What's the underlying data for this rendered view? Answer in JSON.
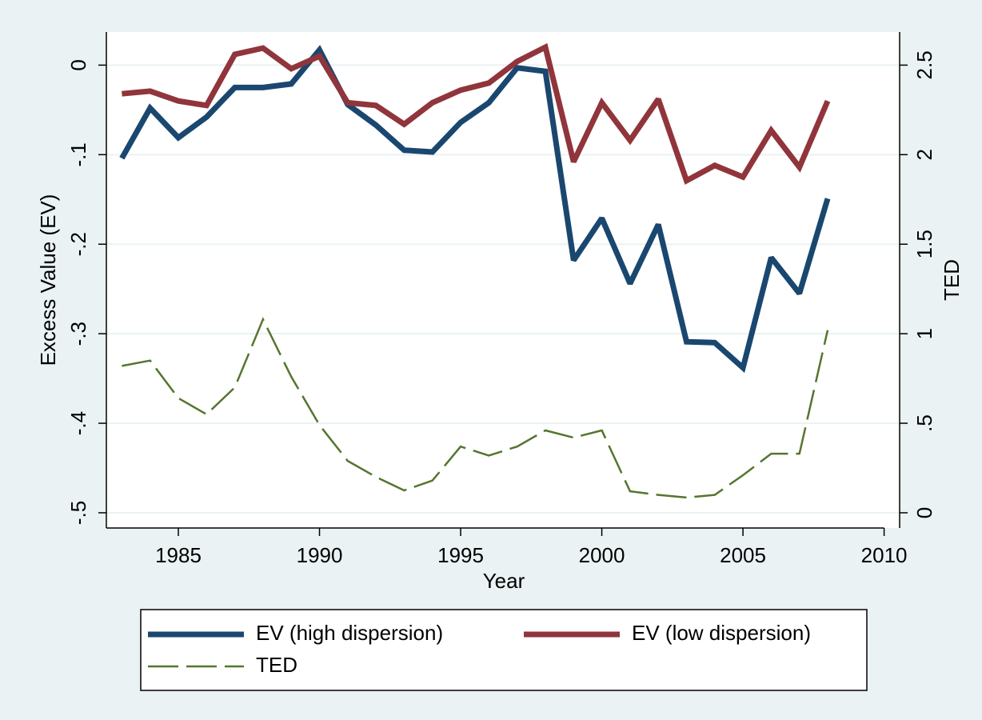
{
  "chart_data": {
    "type": "line",
    "xlabel": "Year",
    "ylabel": "Excess Value (EV)",
    "y2label": "TED",
    "x": [
      1983,
      1984,
      1985,
      1986,
      1987,
      1988,
      1989,
      1990,
      1991,
      1992,
      1993,
      1994,
      1995,
      1996,
      1997,
      1998,
      1999,
      2000,
      2001,
      2002,
      2003,
      2004,
      2005,
      2006,
      2007,
      2008
    ],
    "xlim": [
      1982.45,
      2010.55
    ],
    "xticks": [
      1985,
      1990,
      1995,
      2000,
      2005,
      2010
    ],
    "ylim": [
      -0.517,
      0.037
    ],
    "yticks": [
      {
        "value": -0.5,
        "label": "-.5"
      },
      {
        "value": -0.4,
        "label": "-.4"
      },
      {
        "value": -0.3,
        "label": "-.3"
      },
      {
        "value": -0.2,
        "label": "-.2"
      },
      {
        "value": -0.1,
        "label": "-.1"
      },
      0
    ],
    "y2lim": [
      -0.085,
      2.685
    ],
    "y2ticks": [
      0,
      {
        "value": 0.5,
        "label": ".5"
      },
      1,
      1.5,
      2,
      2.5
    ],
    "grid": true,
    "legend": "bottom",
    "series": [
      {
        "name": "EV (high dispersion)",
        "color": "#1a476f",
        "style": "solid",
        "axis": "y",
        "values": [
          -0.104,
          -0.048,
          -0.081,
          -0.058,
          -0.025,
          -0.025,
          -0.021,
          0.017,
          -0.044,
          -0.067,
          -0.095,
          -0.097,
          -0.064,
          -0.042,
          -0.003,
          -0.007,
          -0.218,
          -0.171,
          -0.244,
          -0.178,
          -0.309,
          -0.31,
          -0.338,
          -0.215,
          -0.255,
          -0.149
        ]
      },
      {
        "name": "EV (low dispersion)",
        "color": "#90353b",
        "style": "solid",
        "axis": "y",
        "values": [
          -0.032,
          -0.029,
          -0.04,
          -0.045,
          0.012,
          0.019,
          -0.004,
          0.01,
          -0.042,
          -0.045,
          -0.066,
          -0.042,
          -0.028,
          -0.02,
          0.004,
          0.02,
          -0.108,
          -0.042,
          -0.084,
          -0.038,
          -0.129,
          -0.112,
          -0.125,
          -0.073,
          -0.114,
          -0.04
        ]
      },
      {
        "name": "TED",
        "color": "#55752f",
        "style": "dashed",
        "axis": "y2",
        "values": [
          0.82,
          0.85,
          0.64,
          0.55,
          0.7,
          1.08,
          0.76,
          0.49,
          0.29,
          0.2,
          0.125,
          0.18,
          0.37,
          0.32,
          0.37,
          0.46,
          0.42,
          0.46,
          0.12,
          0.1,
          0.085,
          0.1,
          0.21,
          0.33,
          0.33,
          1.02
        ]
      }
    ]
  }
}
